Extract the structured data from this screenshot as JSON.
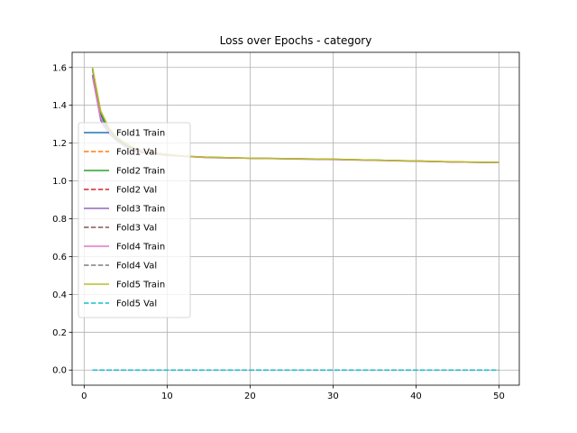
{
  "chart_data": {
    "type": "line",
    "title": "Loss over Epochs - category",
    "xlabel": "",
    "ylabel": "",
    "xlim": [
      -1.45,
      52.45
    ],
    "ylim": [
      -0.08,
      1.68
    ],
    "xticks": [
      0,
      10,
      20,
      30,
      40,
      50
    ],
    "yticks": [
      0.0,
      0.2,
      0.4,
      0.6,
      0.8,
      1.0,
      1.2,
      1.4,
      1.6
    ],
    "grid": true,
    "legend_position": "center-left",
    "series": [
      {
        "name": "Fold1 Train",
        "color": "#1f77b4",
        "dash": "solid",
        "x": [
          1,
          2,
          3,
          4,
          5,
          6,
          7,
          8,
          10,
          12,
          15,
          20,
          25,
          30,
          35,
          40,
          45,
          50
        ],
        "y": [
          1.59,
          1.35,
          1.26,
          1.22,
          1.19,
          1.17,
          1.16,
          1.15,
          1.14,
          1.13,
          1.125,
          1.12,
          1.118,
          1.115,
          1.11,
          1.105,
          1.1,
          1.098
        ]
      },
      {
        "name": "Fold1 Val",
        "color": "#ff7f0e",
        "dash": "dashed",
        "x": [
          1,
          50
        ],
        "y": [
          0.0,
          0.0
        ]
      },
      {
        "name": "Fold2 Train",
        "color": "#2ca02c",
        "dash": "solid",
        "x": [
          1,
          2,
          3,
          4,
          5,
          6,
          7,
          8,
          10,
          12,
          15,
          20,
          25,
          30,
          35,
          40,
          45,
          50
        ],
        "y": [
          1.6,
          1.36,
          1.27,
          1.22,
          1.19,
          1.17,
          1.16,
          1.15,
          1.14,
          1.13,
          1.125,
          1.12,
          1.117,
          1.114,
          1.11,
          1.105,
          1.1,
          1.097
        ]
      },
      {
        "name": "Fold2 Val",
        "color": "#d62728",
        "dash": "dashed",
        "x": [
          1,
          50
        ],
        "y": [
          0.0,
          0.0
        ]
      },
      {
        "name": "Fold3 Train",
        "color": "#9467bd",
        "dash": "solid",
        "x": [
          1,
          2,
          3,
          4,
          5,
          6,
          7,
          8,
          10,
          12,
          15,
          20,
          25,
          30,
          35,
          40,
          45,
          50
        ],
        "y": [
          1.56,
          1.32,
          1.25,
          1.21,
          1.18,
          1.16,
          1.15,
          1.145,
          1.135,
          1.13,
          1.123,
          1.12,
          1.116,
          1.113,
          1.109,
          1.104,
          1.1,
          1.097
        ]
      },
      {
        "name": "Fold3 Val",
        "color": "#8c564b",
        "dash": "dashed",
        "x": [
          1,
          50
        ],
        "y": [
          0.0,
          0.0
        ]
      },
      {
        "name": "Fold4 Train",
        "color": "#e377c2",
        "dash": "solid",
        "x": [
          1,
          2,
          3,
          4,
          5,
          6,
          7,
          8,
          10,
          12,
          15,
          20,
          25,
          30,
          35,
          40,
          45,
          50
        ],
        "y": [
          1.55,
          1.33,
          1.26,
          1.21,
          1.18,
          1.165,
          1.155,
          1.147,
          1.137,
          1.13,
          1.124,
          1.12,
          1.117,
          1.114,
          1.109,
          1.105,
          1.1,
          1.097
        ]
      },
      {
        "name": "Fold4 Val",
        "color": "#7f7f7f",
        "dash": "dashed",
        "x": [
          1,
          50
        ],
        "y": [
          0.0,
          0.0
        ]
      },
      {
        "name": "Fold5 Train",
        "color": "#bcbd22",
        "dash": "solid",
        "x": [
          1,
          2,
          3,
          4,
          5,
          6,
          7,
          8,
          10,
          12,
          15,
          20,
          25,
          30,
          35,
          40,
          45,
          50
        ],
        "y": [
          1.6,
          1.37,
          1.28,
          1.23,
          1.2,
          1.175,
          1.16,
          1.15,
          1.14,
          1.132,
          1.125,
          1.121,
          1.118,
          1.115,
          1.11,
          1.106,
          1.101,
          1.098
        ]
      },
      {
        "name": "Fold5 Val",
        "color": "#17becf",
        "dash": "dashed",
        "x": [
          1,
          50
        ],
        "y": [
          0.0,
          0.0
        ]
      }
    ]
  }
}
